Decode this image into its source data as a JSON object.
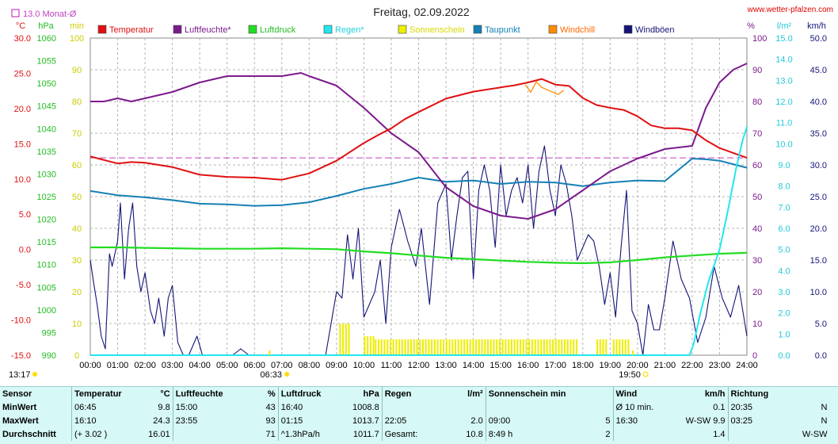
{
  "title": "Freitag, 02.09.2022",
  "site": "www.wetter-pfalzen.com",
  "monthly_avg_label": "13.0 Monat-Ø",
  "units": {
    "temp": "°C",
    "pressure": "hPa",
    "minutes": "min",
    "percent": "%",
    "rain": "l/m²",
    "wind": "km/h"
  },
  "sunrise": {
    "marker": "06:33",
    "low_left": "13:17"
  },
  "sunset": {
    "marker": "19:50"
  },
  "colors": {
    "temperature": "#e01010",
    "humidity": "#7b1a8c",
    "pressure": "#22dd22",
    "rain": "#22e6ee",
    "sunshine": "#eeee00",
    "dewpoint": "#1480b4",
    "windchill": "#ff8c00",
    "gusts": "#141478",
    "avg_line": "#c040c0",
    "grid": "#b4b4b4",
    "plot_bg": "#ffffff"
  },
  "chart_data": {
    "type": "line",
    "title": "Freitag, 02.09.2022",
    "x_ticks": [
      "00:00",
      "01:00",
      "02:00",
      "03:00",
      "04:00",
      "05:00",
      "06:00",
      "07:00",
      "08:00",
      "09:00",
      "10:00",
      "11:00",
      "12:00",
      "13:00",
      "14:00",
      "15:00",
      "16:00",
      "17:00",
      "18:00",
      "19:00",
      "20:00",
      "21:00",
      "22:00",
      "23:00",
      "24:00"
    ],
    "axes": {
      "temp_c": {
        "label": "°C",
        "range": [
          -15,
          30
        ],
        "ticks": [
          "-15.0",
          "-10.0",
          "-5.0",
          "0.0",
          "5.0",
          "10.0",
          "15.0",
          "20.0",
          "25.0",
          "30.0"
        ]
      },
      "pressure_hpa": {
        "label": "hPa",
        "range": [
          990,
          1060
        ],
        "ticks": [
          "990",
          "995",
          "1000",
          "1005",
          "1010",
          "1015",
          "1020",
          "1025",
          "1030",
          "1035",
          "1040",
          "1045",
          "1050",
          "1055",
          "1060"
        ]
      },
      "minutes": {
        "label": "min",
        "range": [
          0,
          100
        ],
        "ticks": [
          "0",
          "10",
          "20",
          "30",
          "40",
          "50",
          "60",
          "70",
          "80",
          "90",
          "100"
        ]
      },
      "humidity_pct": {
        "label": "%",
        "range": [
          0,
          100
        ],
        "ticks": [
          "0",
          "10",
          "20",
          "30",
          "40",
          "50",
          "60",
          "70",
          "80",
          "90",
          "100"
        ]
      },
      "rain_lm2": {
        "label": "l/m²",
        "range": [
          0,
          15
        ],
        "ticks": [
          "0.0",
          "1.0",
          "2.0",
          "3.0",
          "4.0",
          "5.0",
          "6.0",
          "7.0",
          "8.0",
          "9.0",
          "10.0",
          "11.0",
          "12.0",
          "13.0",
          "14.0",
          "15.0"
        ]
      },
      "wind_kmh": {
        "label": "km/h",
        "range": [
          0,
          50
        ],
        "ticks": [
          "0.0",
          "5.0",
          "10.0",
          "15.0",
          "20.0",
          "25.0",
          "30.0",
          "35.0",
          "40.0",
          "45.0",
          "50.0"
        ]
      }
    },
    "monthly_avg_temp": 13.0,
    "series": [
      {
        "name": "Temperatur",
        "axis": "temp_c",
        "x": [
          0,
          0.5,
          1,
          1.5,
          2,
          3,
          4,
          5,
          6,
          7,
          8,
          9,
          10,
          10.5,
          11,
          11.5,
          12,
          13,
          14,
          15,
          15.5,
          16,
          16.5,
          17,
          17.5,
          18,
          18.5,
          19,
          19.5,
          20,
          20.5,
          21,
          21.5,
          22,
          22.5,
          23,
          23.5,
          24
        ],
        "y": [
          13.2,
          12.7,
          12.2,
          12.4,
          12.3,
          11.7,
          10.6,
          10.3,
          10.2,
          9.9,
          10.8,
          12.6,
          15.1,
          16.2,
          17.2,
          18.5,
          19.5,
          21.4,
          22.4,
          23.0,
          23.3,
          23.7,
          24.2,
          23.4,
          23.2,
          21.5,
          20.5,
          20.1,
          19.8,
          18.9,
          17.6,
          17.2,
          17.2,
          16.9,
          15.5,
          14.4,
          13.7,
          13.0
        ]
      },
      {
        "name": "Luftfeuchte*",
        "axis": "humidity_pct",
        "x": [
          0,
          0.5,
          1,
          1.5,
          2,
          3,
          4,
          5,
          6,
          7,
          7.7,
          8,
          9,
          10,
          11,
          12,
          13,
          14,
          15,
          16,
          17,
          18,
          19,
          20,
          21,
          22,
          22.5,
          23,
          23.5,
          24
        ],
        "y": [
          80,
          80,
          81,
          80,
          81,
          83,
          86,
          88,
          88,
          88,
          89,
          88,
          85,
          78,
          70,
          64,
          53,
          47,
          44,
          43,
          46,
          52,
          58,
          62,
          65,
          66,
          78,
          86,
          90,
          92
        ]
      },
      {
        "name": "Luftdruck",
        "axis": "pressure_hpa",
        "x": [
          0,
          1,
          2,
          3,
          4,
          5,
          6,
          7,
          8,
          9,
          10,
          11,
          12,
          13,
          14,
          15,
          16,
          17,
          18,
          19,
          20,
          21,
          22,
          23,
          24
        ],
        "y": [
          1013.8,
          1013.8,
          1013.7,
          1013.6,
          1013.5,
          1013.5,
          1013.5,
          1013.6,
          1013.5,
          1013.4,
          1012.9,
          1012.5,
          1012.0,
          1011.5,
          1011.2,
          1010.9,
          1010.6,
          1010.4,
          1010.3,
          1010.5,
          1011.0,
          1011.6,
          1012.0,
          1012.4,
          1012.6
        ]
      },
      {
        "name": "Regen*",
        "axis": "rain_lm2",
        "x": [
          0,
          21.9,
          22.05,
          22.3,
          22.6,
          23,
          23.3,
          23.6,
          23.85,
          24
        ],
        "y": [
          0,
          0,
          0.5,
          2.0,
          3.5,
          5.0,
          6.8,
          8.8,
          10.2,
          10.8
        ]
      },
      {
        "name": "Sonnenschein",
        "axis": "minutes",
        "blocks": [
          [
            9.1,
            9.5,
            10
          ],
          [
            10.0,
            10.4,
            6
          ],
          [
            10.4,
            17.8,
            5
          ],
          [
            18.5,
            18.9,
            5
          ],
          [
            19.1,
            19.7,
            5
          ]
        ]
      },
      {
        "name": "Taupunkt",
        "axis": "temp_c",
        "x": [
          0,
          1,
          2,
          3,
          4,
          5,
          6,
          7,
          8,
          9,
          10,
          11,
          12,
          13,
          14,
          15,
          16,
          17,
          18,
          19,
          20,
          21,
          22,
          22.5,
          23,
          23.5,
          24
        ],
        "y": [
          8.3,
          7.7,
          7.4,
          7.0,
          6.5,
          6.4,
          6.2,
          6.3,
          6.7,
          7.6,
          8.6,
          9.3,
          10.2,
          9.6,
          9.8,
          9.3,
          9.6,
          9.5,
          9.0,
          9.5,
          9.8,
          9.7,
          12.9,
          12.8,
          12.6,
          12.1,
          11.6
        ]
      },
      {
        "name": "Windchill",
        "axis": "temp_c",
        "x": [
          15.9,
          16.1,
          16.3,
          16.5,
          16.8,
          17.1,
          17.3
        ],
        "y": [
          23.4,
          22.3,
          23.8,
          23.0,
          22.5,
          22.0,
          22.6
        ]
      },
      {
        "name": "Windböen",
        "axis": "wind_kmh",
        "x": [
          0,
          0.1,
          0.25,
          0.4,
          0.55,
          0.7,
          0.8,
          1.0,
          1.1,
          1.25,
          1.4,
          1.55,
          1.7,
          1.85,
          2.0,
          2.2,
          2.35,
          2.5,
          2.7,
          2.85,
          3.0,
          3.2,
          3.4,
          3.6,
          3.9,
          4.1,
          4.3,
          4.6,
          4.9,
          5.2,
          5.5,
          5.8,
          6.1,
          6.4,
          6.7,
          7.0,
          7.4,
          7.8,
          8.2,
          8.6,
          9.0,
          9.2,
          9.4,
          9.6,
          9.8,
          10.0,
          10.2,
          10.4,
          10.6,
          10.8,
          11.0,
          11.3,
          11.6,
          11.9,
          12.1,
          12.4,
          12.7,
          13.0,
          13.2,
          13.4,
          13.6,
          13.8,
          14.0,
          14.2,
          14.4,
          14.6,
          14.8,
          15.0,
          15.2,
          15.4,
          15.6,
          15.8,
          16.0,
          16.2,
          16.4,
          16.6,
          16.8,
          17.0,
          17.2,
          17.4,
          17.6,
          17.8,
          18.0,
          18.2,
          18.4,
          18.6,
          18.8,
          19.0,
          19.2,
          19.4,
          19.6,
          19.8,
          20.0,
          20.2,
          20.4,
          20.6,
          20.8,
          21.0,
          21.3,
          21.6,
          21.9,
          22.2,
          22.5,
          22.8,
          23.1,
          23.4,
          23.7,
          24.0
        ],
        "y": [
          15,
          12,
          8,
          3,
          1,
          16,
          14,
          18,
          24,
          12,
          20,
          24,
          14,
          10,
          13,
          7,
          5,
          9,
          3,
          9,
          11,
          2,
          0,
          0,
          3,
          0,
          0,
          0,
          0,
          0,
          1,
          0,
          0,
          0,
          0,
          0,
          0,
          0,
          0,
          0,
          10,
          9,
          19,
          12,
          20,
          6,
          8,
          10,
          15,
          5,
          17,
          23,
          18,
          14,
          20,
          8,
          24,
          27,
          15,
          22,
          28,
          29,
          12,
          26,
          30,
          26,
          17,
          30,
          22,
          26,
          28,
          24,
          30,
          20,
          29,
          33,
          26,
          22,
          30,
          27,
          22,
          15,
          17,
          19,
          18,
          14,
          8,
          13,
          6,
          17,
          26,
          7,
          5,
          0,
          8,
          4,
          4,
          9,
          18,
          12,
          9,
          2,
          6,
          14,
          9,
          6,
          11,
          3
        ]
      }
    ],
    "legend": [
      "Temperatur",
      "Luftfeuchte*",
      "Luftdruck",
      "Regen*",
      "Sonnenschein",
      "Taupunkt",
      "Windchill",
      "Windböen"
    ]
  },
  "stats": {
    "headers": [
      {
        "a": "Sensor",
        "b": ""
      },
      {
        "a": "Temperatur",
        "b": "°C"
      },
      {
        "a": "Luftfeuchte",
        "b": "%"
      },
      {
        "a": "Luftdruck",
        "b": "hPa"
      },
      {
        "a": "Regen",
        "b": "l/m²"
      },
      {
        "a": "Sonnenschein min",
        "b": ""
      },
      {
        "a": "Wind",
        "b": "km/h"
      },
      {
        "a": "Richtung",
        "b": ""
      }
    ],
    "rows": [
      {
        "label": "MinWert",
        "cells": [
          [
            "06:45",
            "9.8"
          ],
          [
            "15:00",
            "43"
          ],
          [
            "16:40",
            "1008.8"
          ],
          [
            "",
            ""
          ],
          [
            "",
            ""
          ],
          [
            "Ø 10 min.",
            "0.1"
          ],
          [
            "20:35",
            "N"
          ]
        ]
      },
      {
        "label": "MaxWert",
        "cells": [
          [
            "16:10",
            "24.3"
          ],
          [
            "23:55",
            "93"
          ],
          [
            "01:15",
            "1013.7"
          ],
          [
            "22:05",
            "2.0"
          ],
          [
            "09:00",
            "5"
          ],
          [
            "16:30",
            "W-SW 9.9"
          ],
          [
            "03:25",
            "N"
          ]
        ]
      },
      {
        "label": "Durchschnitt",
        "cells": [
          [
            "(+ 3.02 )",
            "16.01"
          ],
          [
            "",
            "71"
          ],
          [
            "^1.3hPa/h",
            "1011.7"
          ],
          [
            "Gesamt:",
            "10.8"
          ],
          [
            "8:49 h",
            "2"
          ],
          [
            "",
            "1.4"
          ],
          [
            "",
            "W-SW"
          ]
        ]
      }
    ]
  }
}
